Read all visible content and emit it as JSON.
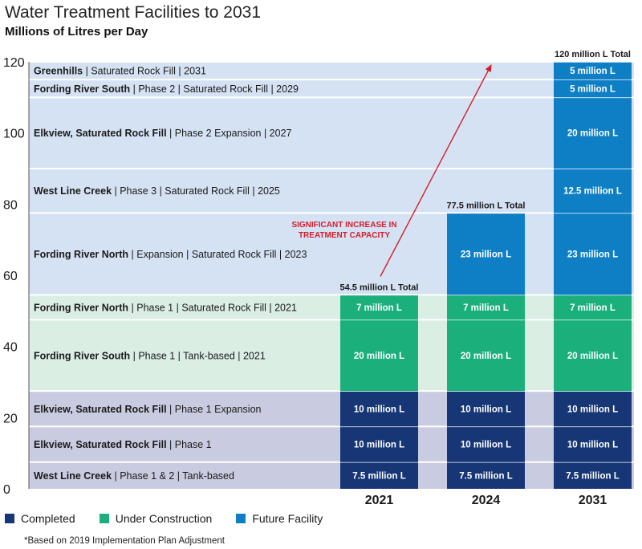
{
  "colors": {
    "completed": "#163675",
    "under_construction": "#1baf7c",
    "future": "#0e7fc5",
    "bg_completed": "#c9cbe0",
    "bg_under_construction": "#dbeee4",
    "bg_future": "#d5e2f3",
    "arrow": "#d21f2b"
  },
  "chart_data": {
    "type": "bar",
    "stacked": true,
    "title": "Water Treatment Facilities to 2031",
    "subtitle": "Millions of Litres per Day",
    "categories": [
      "2021",
      "2024",
      "2031"
    ],
    "ylim": [
      0,
      120
    ],
    "yticks": [
      0,
      20,
      40,
      60,
      80,
      100,
      120
    ],
    "grid": false,
    "legend_position": "bottom-left",
    "legend": [
      {
        "label": "Completed",
        "status": "completed"
      },
      {
        "label": "Under Construction",
        "status": "under_construction"
      },
      {
        "label": "Future Facility",
        "status": "future"
      }
    ],
    "rows": [
      {
        "name": "West Line Creek",
        "detail": "Phase 1 & 2  |  Tank-based",
        "status": "completed",
        "value": 7.5,
        "cells": [
          "7.5 million L",
          "7.5 million L",
          "7.5 million L"
        ],
        "present": [
          true,
          true,
          true
        ]
      },
      {
        "name": "Elkview, Saturated Rock Fill",
        "detail": "Phase 1",
        "status": "completed",
        "value": 10,
        "cells": [
          "10 million L",
          "10 million L",
          "10 million L"
        ],
        "present": [
          true,
          true,
          true
        ]
      },
      {
        "name": "Elkview, Saturated Rock Fill",
        "detail": "Phase 1 Expansion",
        "status": "completed",
        "value": 10,
        "cells": [
          "10 million L",
          "10 million L",
          "10 million L"
        ],
        "present": [
          true,
          true,
          true
        ]
      },
      {
        "name": "Fording River South",
        "detail": "Phase 1  |  Tank-based  |  2021",
        "status": "under_construction",
        "value": 20,
        "cells": [
          "20 million L",
          "20 million L",
          "20 million L"
        ],
        "present": [
          true,
          true,
          true
        ]
      },
      {
        "name": "Fording River North",
        "detail": "Phase 1  |  Saturated Rock Fill  |  2021",
        "status": "under_construction",
        "value": 7,
        "cells": [
          "7 million L",
          "7 million L",
          "7 million L"
        ],
        "present": [
          true,
          true,
          true
        ]
      },
      {
        "name": "Fording River North",
        "detail": "Expansion  |  Saturated Rock Fill  |  2023",
        "status": "future",
        "value": 23,
        "cells": [
          "",
          "23 million L",
          "23 million L"
        ],
        "present": [
          false,
          true,
          true
        ]
      },
      {
        "name": "West Line Creek",
        "detail": "Phase 3  |  Saturated Rock Fill  |  2025",
        "status": "future",
        "value": 12.5,
        "cells": [
          "",
          "",
          "12.5 million L"
        ],
        "present": [
          false,
          false,
          true
        ]
      },
      {
        "name": "Elkview, Saturated Rock Fill",
        "detail": "Phase 2 Expansion  |  2027",
        "status": "future",
        "value": 20,
        "cells": [
          "",
          "",
          "20 million L"
        ],
        "present": [
          false,
          false,
          true
        ]
      },
      {
        "name": "Fording River South",
        "detail": "Phase 2  |  Saturated Rock Fill  |  2029",
        "status": "future",
        "value": 5,
        "cells": [
          "",
          "",
          "5 million L"
        ],
        "present": [
          false,
          false,
          true
        ]
      },
      {
        "name": "Greenhills",
        "detail": "Saturated Rock Fill  |  2031",
        "status": "future",
        "value": 5,
        "cells": [
          "",
          "",
          "5 million L"
        ],
        "present": [
          false,
          false,
          true
        ]
      }
    ],
    "totals": [
      {
        "label": "54.5 million L Total",
        "value": 54.5
      },
      {
        "label": "77.5 million L Total",
        "value": 77.5
      },
      {
        "label": "120 million L Total",
        "value": 120
      }
    ],
    "annotation": {
      "lines": [
        "SIGNIFICANT INCREASE IN",
        "TREATMENT CAPACITY"
      ],
      "from_value": 54.5,
      "to_value": 120
    }
  },
  "footnote": "*Based on 2019 Implementation Plan Adjustment"
}
